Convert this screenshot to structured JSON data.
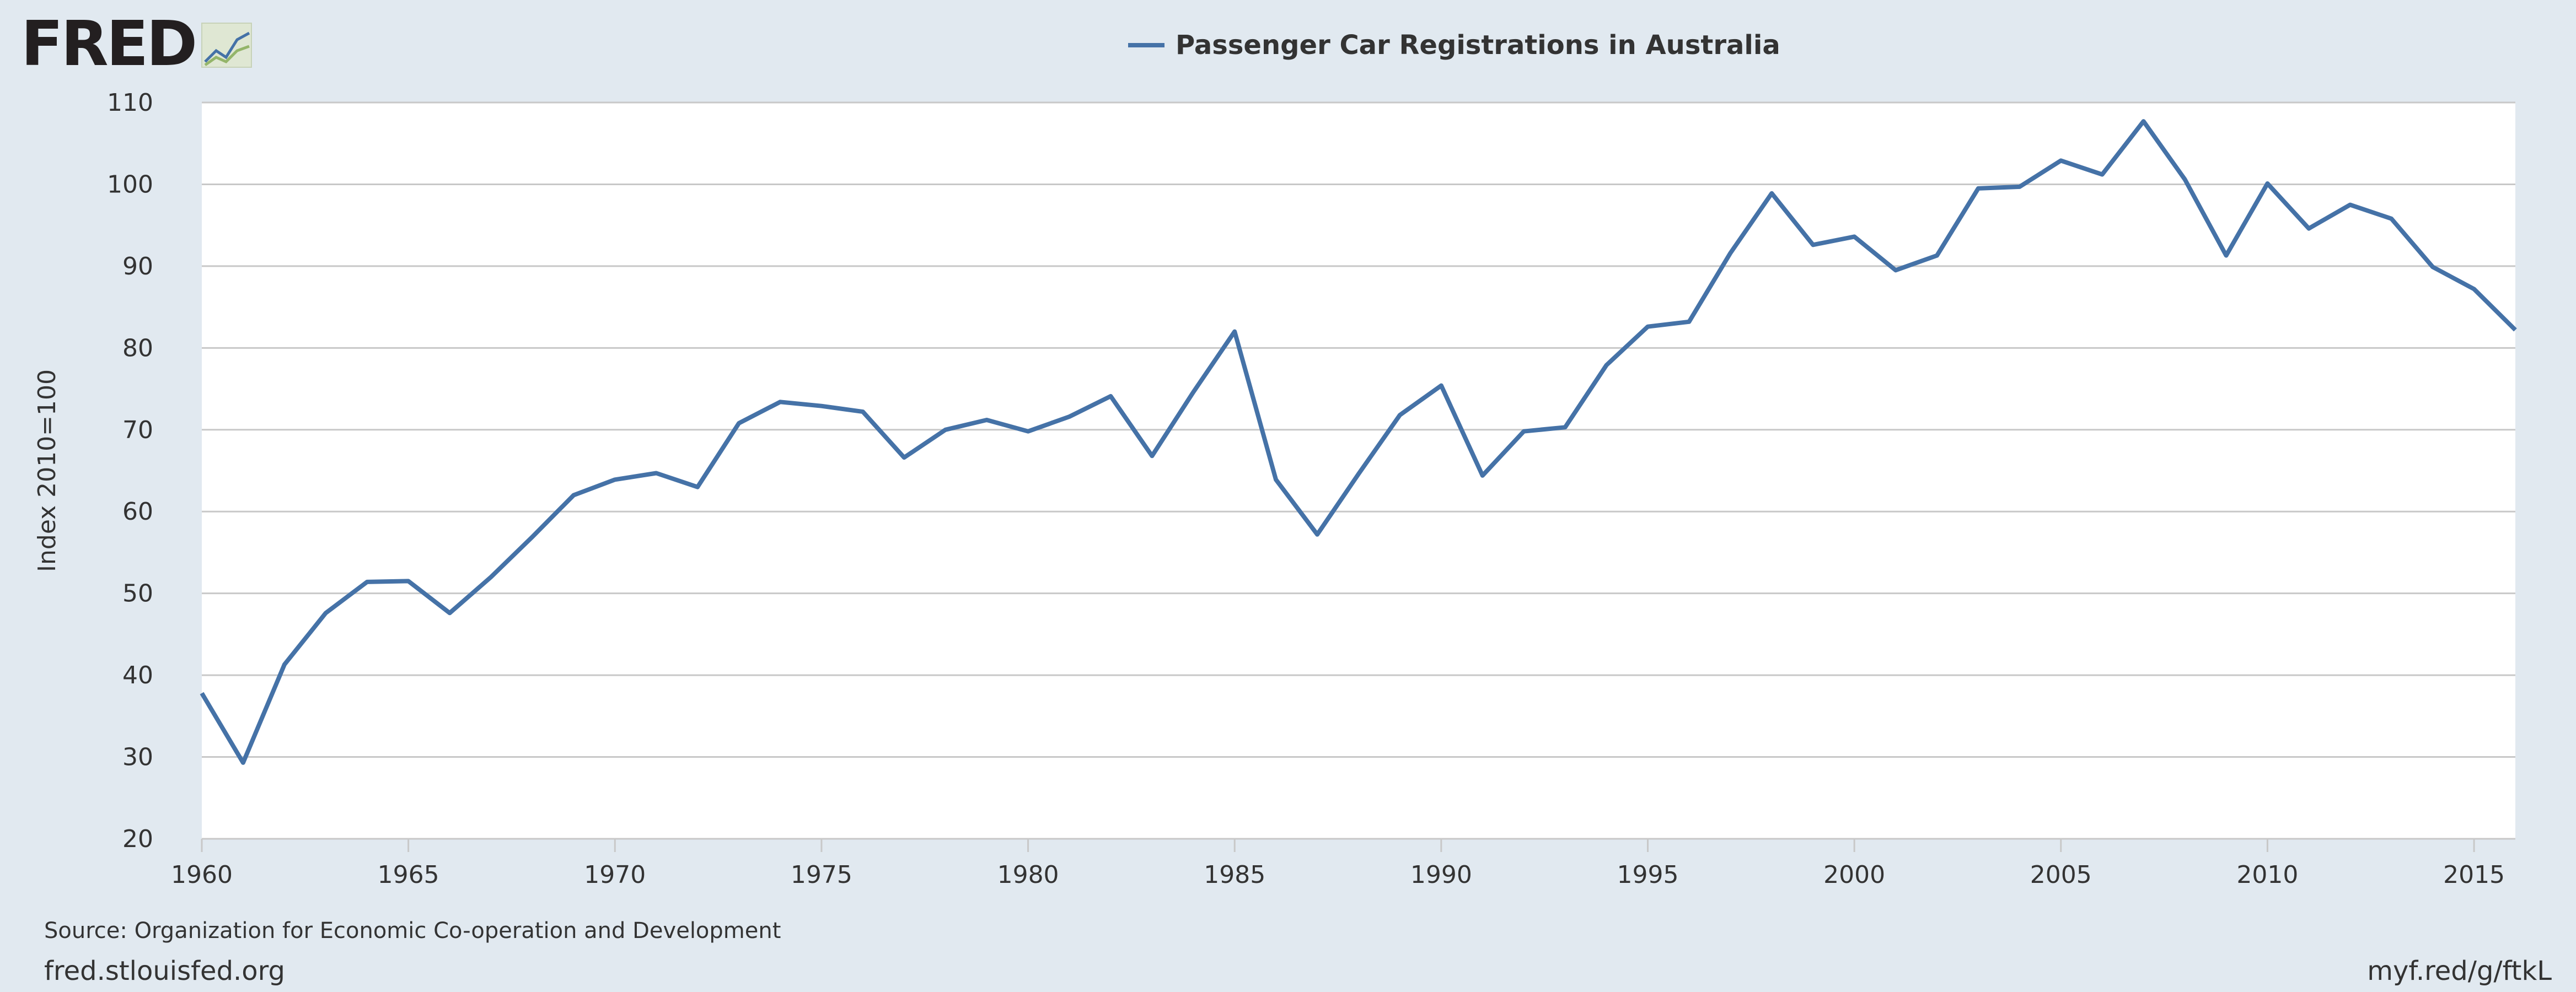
{
  "logo": {
    "text": "FRED",
    "icon": "trend-chart-icon"
  },
  "footer": {
    "source": "Source: Organization for Economic Co-operation and Development",
    "site": "fred.stlouisfed.org",
    "short_link": "myf.red/g/ftkL"
  },
  "colors": {
    "background": "#e1e9f0",
    "plot_bg": "#ffffff",
    "series": "#4572a7",
    "grid": "#c8c8c8",
    "text": "#333333"
  },
  "chart_data": {
    "type": "line",
    "title": "",
    "xlabel": "",
    "ylabel": "Index 2010=100",
    "xlim": [
      1960,
      2016
    ],
    "ylim": [
      20,
      110
    ],
    "x_ticks": [
      1960,
      1965,
      1970,
      1975,
      1980,
      1985,
      1990,
      1995,
      2000,
      2005,
      2010,
      2015
    ],
    "y_ticks": [
      20,
      30,
      40,
      50,
      60,
      70,
      80,
      90,
      100,
      110
    ],
    "grid": true,
    "legend": "top-center",
    "series": [
      {
        "name": "Passenger Car Registrations in Australia",
        "x": [
          1960,
          1961,
          1962,
          1963,
          1964,
          1965,
          1966,
          1967,
          1968,
          1969,
          1970,
          1971,
          1972,
          1973,
          1974,
          1975,
          1976,
          1977,
          1978,
          1979,
          1980,
          1981,
          1982,
          1983,
          1984,
          1985,
          1986,
          1987,
          1988,
          1989,
          1990,
          1991,
          1992,
          1993,
          1994,
          1995,
          1996,
          1997,
          1998,
          1999,
          2000,
          2001,
          2002,
          2003,
          2004,
          2005,
          2006,
          2007,
          2008,
          2009,
          2010,
          2011,
          2012,
          2013,
          2014,
          2015,
          2016
        ],
        "values": [
          37.8,
          29.3,
          41.3,
          47.6,
          51.4,
          51.5,
          47.6,
          52.0,
          56.9,
          62.0,
          63.9,
          64.7,
          63.0,
          70.8,
          73.4,
          72.9,
          72.2,
          66.6,
          70.0,
          71.2,
          69.8,
          71.6,
          74.1,
          66.8,
          74.6,
          82.0,
          63.9,
          57.2,
          64.6,
          71.8,
          75.4,
          64.4,
          69.8,
          70.3,
          77.9,
          82.6,
          83.2,
          91.6,
          98.9,
          92.6,
          93.6,
          89.5,
          91.3,
          99.5,
          99.7,
          102.9,
          101.2,
          107.7,
          100.6,
          91.3,
          100.1,
          94.6,
          97.5,
          95.8,
          89.9,
          87.2,
          82.2
        ]
      }
    ]
  }
}
